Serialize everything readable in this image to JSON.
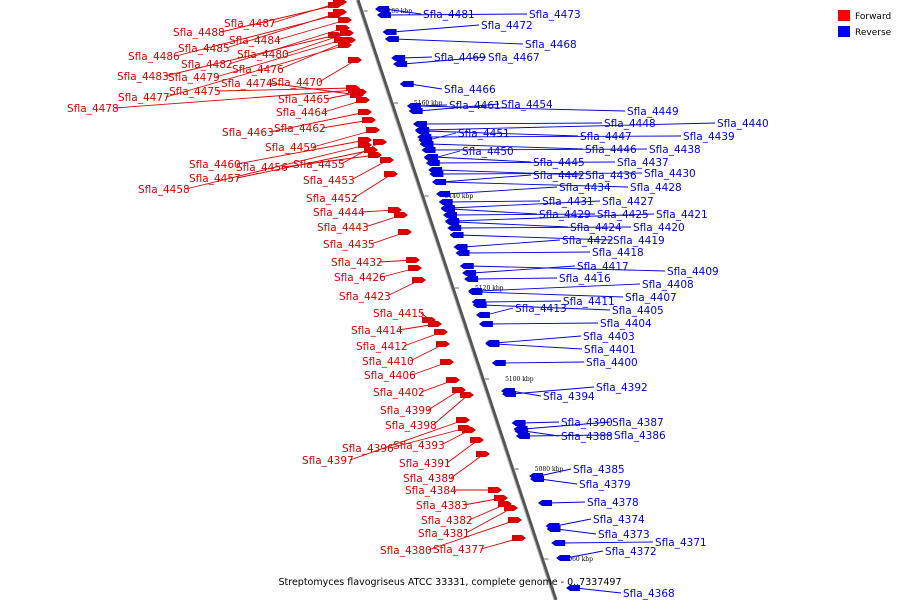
{
  "caption": "Streptomyces flavogriseus ATCC 33331, complete genome - 0..7337497",
  "legend": [
    {
      "label": "Forward",
      "color": "#ff0000"
    },
    {
      "label": "Reverse",
      "color": "#0000ff"
    }
  ],
  "colors": {
    "forward": "#dd0000",
    "reverse": "#0000dd",
    "axis": "#999999"
  },
  "ticks": [
    "5180 kbp",
    "5160 kbp",
    "5140 kbp",
    "5120 kbp",
    "5100 kbp",
    "5080 kbp",
    "5060 kbp"
  ],
  "forward_genes": [
    "Sfla_4488",
    "Sfla_4487",
    "Sfla_4486",
    "Sfla_4485",
    "Sfla_4484",
    "Sfla_4483",
    "Sfla_4482",
    "Sfla_4480",
    "Sfla_4479",
    "Sfla_4478",
    "Sfla_4477",
    "Sfla_4476",
    "Sfla_4475",
    "Sfla_4474",
    "Sfla_4470",
    "Sfla_4465",
    "Sfla_4464",
    "Sfla_4463",
    "Sfla_4462",
    "Sfla_4460",
    "Sfla_4459",
    "Sfla_4458",
    "Sfla_4457",
    "Sfla_4456",
    "Sfla_4455",
    "Sfla_4453",
    "Sfla_4452",
    "Sfla_4444",
    "Sfla_4443",
    "Sfla_4435",
    "Sfla_4432",
    "Sfla_4426",
    "Sfla_4423",
    "Sfla_4415",
    "Sfla_4414",
    "Sfla_4412",
    "Sfla_4410",
    "Sfla_4406",
    "Sfla_4402",
    "Sfla_4399",
    "Sfla_4398",
    "Sfla_4397",
    "Sfla_4396",
    "Sfla_4393",
    "Sfla_4391",
    "Sfla_4389",
    "Sfla_4384",
    "Sfla_4383",
    "Sfla_4382",
    "Sfla_4381",
    "Sfla_4380",
    "Sfla_4377"
  ],
  "reverse_genes": [
    "Sfla_4481",
    "Sfla_4473",
    "Sfla_4472",
    "Sfla_4468",
    "Sfla_4469",
    "Sfla_4467",
    "Sfla_4466",
    "Sfla_4461",
    "Sfla_4454",
    "Sfla_4449",
    "Sfla_4448",
    "Sfla_4440",
    "Sfla_4447",
    "Sfla_4439",
    "Sfla_4451",
    "Sfla_4446",
    "Sfla_4438",
    "Sfla_4450",
    "Sfla_4445",
    "Sfla_4437",
    "Sfla_4442",
    "Sfla_4436",
    "Sfla_4430",
    "Sfla_4434",
    "Sfla_4428",
    "Sfla_4431",
    "Sfla_4427",
    "Sfla_4429",
    "Sfla_4425",
    "Sfla_4421",
    "Sfla_4424",
    "Sfla_4420",
    "Sfla_4422",
    "Sfla_4419",
    "Sfla_4418",
    "Sfla_4417",
    "Sfla_4409",
    "Sfla_4416",
    "Sfla_4408",
    "Sfla_4407",
    "Sfla_4411",
    "Sfla_4413",
    "Sfla_4405",
    "Sfla_4404",
    "Sfla_4403",
    "Sfla_4401",
    "Sfla_4400",
    "Sfla_4392",
    "Sfla_4394",
    "Sfla_4390",
    "Sfla_4387",
    "Sfla_4388",
    "Sfla_4386",
    "Sfla_4385",
    "Sfla_4379",
    "Sfla_4378",
    "Sfla_4374",
    "Sfla_4373",
    "Sfla_4371",
    "Sfla_4372",
    "Sfla_4368"
  ]
}
